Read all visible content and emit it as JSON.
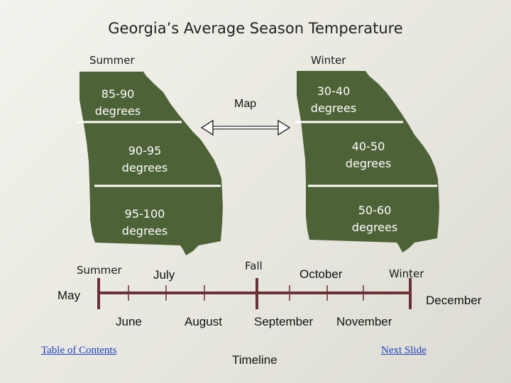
{
  "title": "Georgia’s Average Season Temperature",
  "summer_heading": "Summer",
  "winter_heading": "Winter",
  "map_label": "Map",
  "colors": {
    "map_fill": "#4e6237",
    "timeline": "#6b2f35",
    "divider": "#ffffff",
    "link": "#1f3fbf"
  },
  "summer_map": {
    "regions": [
      {
        "range": "85-90",
        "unit": "degrees"
      },
      {
        "range": "90-95",
        "unit": "degrees"
      },
      {
        "range": "95-100",
        "unit": "degrees"
      }
    ]
  },
  "winter_map": {
    "regions": [
      {
        "range": "30-40",
        "unit": "degrees"
      },
      {
        "range": "40-50",
        "unit": "degrees"
      },
      {
        "range": "50-60",
        "unit": "degrees"
      }
    ]
  },
  "timeline": {
    "title": "Timeline",
    "season_labels": {
      "summer": "Summer",
      "fall": "Fall",
      "winter": "Winter"
    },
    "months_above": [
      "July",
      "October"
    ],
    "months_below": [
      "June",
      "August",
      "September",
      "November"
    ],
    "start_month": "May",
    "end_month": "December"
  },
  "links": {
    "toc": "Table of Contents",
    "next": "Next Slide"
  }
}
